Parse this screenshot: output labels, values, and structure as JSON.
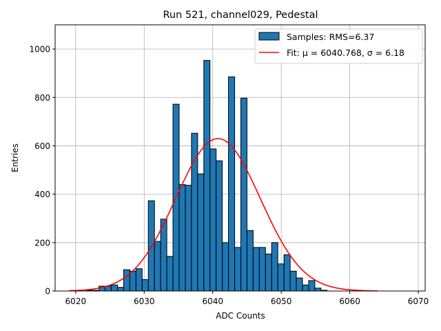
{
  "chart_data": {
    "type": "bar",
    "title": "Run 521, channel029, Pedestal",
    "xlabel": "ADC Counts",
    "ylabel": "Entries",
    "xlim": [
      6017,
      6071
    ],
    "ylim": [
      0,
      1100
    ],
    "xticks": [
      6020,
      6030,
      6040,
      6050,
      6060,
      6070
    ],
    "yticks": [
      0,
      200,
      400,
      600,
      800,
      1000
    ],
    "grid": true,
    "legend_position": "top-right",
    "bin_width": 0.9,
    "bins": [
      {
        "x": 6021.6,
        "count": 3
      },
      {
        "x": 6022.5,
        "count": 3
      },
      {
        "x": 6023.4,
        "count": 20
      },
      {
        "x": 6024.3,
        "count": 20
      },
      {
        "x": 6025.2,
        "count": 25
      },
      {
        "x": 6026.1,
        "count": 15
      },
      {
        "x": 6027.0,
        "count": 88
      },
      {
        "x": 6027.9,
        "count": 82
      },
      {
        "x": 6028.8,
        "count": 92
      },
      {
        "x": 6029.7,
        "count": 47
      },
      {
        "x": 6030.6,
        "count": 373
      },
      {
        "x": 6031.5,
        "count": 205
      },
      {
        "x": 6032.4,
        "count": 297
      },
      {
        "x": 6033.3,
        "count": 143
      },
      {
        "x": 6034.2,
        "count": 772
      },
      {
        "x": 6035.1,
        "count": 440
      },
      {
        "x": 6036.0,
        "count": 437
      },
      {
        "x": 6036.9,
        "count": 652
      },
      {
        "x": 6037.8,
        "count": 484
      },
      {
        "x": 6038.7,
        "count": 953
      },
      {
        "x": 6039.6,
        "count": 587
      },
      {
        "x": 6040.5,
        "count": 538
      },
      {
        "x": 6041.4,
        "count": 200
      },
      {
        "x": 6042.3,
        "count": 885
      },
      {
        "x": 6043.2,
        "count": 180
      },
      {
        "x": 6044.1,
        "count": 797
      },
      {
        "x": 6045.0,
        "count": 250
      },
      {
        "x": 6045.9,
        "count": 180
      },
      {
        "x": 6046.8,
        "count": 180
      },
      {
        "x": 6047.7,
        "count": 153
      },
      {
        "x": 6048.6,
        "count": 200
      },
      {
        "x": 6049.5,
        "count": 112
      },
      {
        "x": 6050.4,
        "count": 150
      },
      {
        "x": 6051.3,
        "count": 82
      },
      {
        "x": 6052.2,
        "count": 54
      },
      {
        "x": 6053.1,
        "count": 25
      },
      {
        "x": 6054.0,
        "count": 43
      },
      {
        "x": 6054.9,
        "count": 12
      },
      {
        "x": 6055.8,
        "count": 3
      }
    ],
    "fit": {
      "amplitude": 630,
      "mu": 6040.768,
      "sigma": 6.18,
      "x_range": [
        6019,
        6064
      ]
    },
    "series": [
      {
        "name": "Samples: RMS=6.37",
        "kind": "histogram",
        "color": "#1f77b4",
        "edge_color": "#000000"
      },
      {
        "name": "Fit: μ = 6040.768, σ = 6.18",
        "kind": "line",
        "color": "#ff0000"
      }
    ]
  }
}
